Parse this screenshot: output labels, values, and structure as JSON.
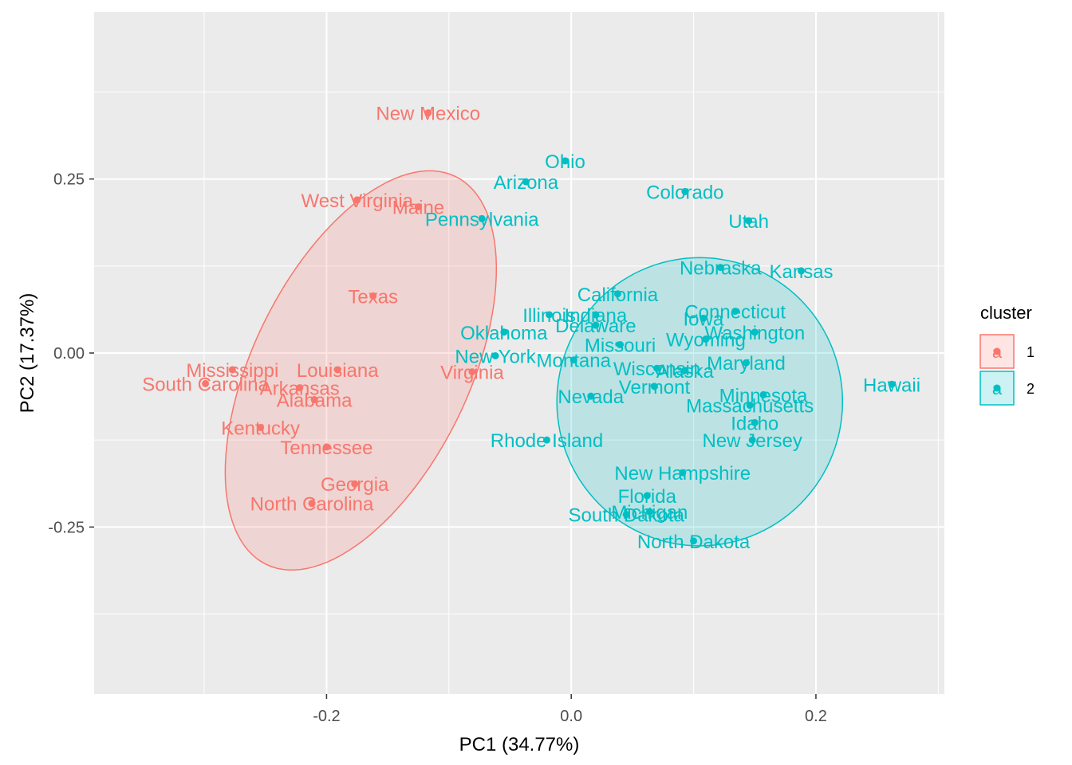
{
  "chart_data": {
    "type": "scatter",
    "xlabel": "PC1 (34.77%)",
    "ylabel": "PC2 (17.37%)",
    "xlim": [
      -0.39,
      0.305
    ],
    "ylim": [
      -0.49,
      0.49
    ],
    "x_ticks": [
      -0.2,
      0.0,
      0.2
    ],
    "x_tick_labels": [
      "-0.2",
      "0.0",
      "0.2"
    ],
    "y_ticks": [
      -0.25,
      0.0,
      0.25
    ],
    "y_tick_labels": [
      "-0.25",
      "0.00",
      "0.25"
    ],
    "grid": true,
    "legend": {
      "title": "cluster",
      "position": "right",
      "entries": [
        {
          "label": "1",
          "color": "#F8766D"
        },
        {
          "label": "2",
          "color": "#00BFC4"
        }
      ]
    },
    "series": [
      {
        "name": "1",
        "color": "#F8766D",
        "ellipse": {
          "cx": -0.172,
          "cy": -0.025,
          "rx": 0.31,
          "ry": 0.155,
          "angle_deg": 64
        },
        "points": [
          {
            "label": "New Mexico",
            "x": -0.117,
            "y": 0.345
          },
          {
            "label": "West Virginia",
            "x": -0.175,
            "y": 0.22
          },
          {
            "label": "Maine",
            "x": -0.125,
            "y": 0.21
          },
          {
            "label": "Texas",
            "x": -0.162,
            "y": 0.082
          },
          {
            "label": "Mississippi",
            "x": -0.277,
            "y": -0.024
          },
          {
            "label": "Louisiana",
            "x": -0.191,
            "y": -0.024
          },
          {
            "label": "South Carolina",
            "x": -0.299,
            "y": -0.044
          },
          {
            "label": "Arkansas",
            "x": -0.222,
            "y": -0.05
          },
          {
            "label": "Alabama",
            "x": -0.21,
            "y": -0.067
          },
          {
            "label": "Virginia",
            "x": -0.081,
            "y": -0.027
          },
          {
            "label": "Kentucky",
            "x": -0.254,
            "y": -0.107
          },
          {
            "label": "Tennessee",
            "x": -0.2,
            "y": -0.135
          },
          {
            "label": "Georgia",
            "x": -0.177,
            "y": -0.188
          },
          {
            "label": "North Carolina",
            "x": -0.212,
            "y": -0.216
          }
        ]
      },
      {
        "name": "2",
        "color": "#00BFC4",
        "ellipse": {
          "cx": 0.105,
          "cy": -0.07,
          "rx": 0.205,
          "ry": 0.207,
          "angle_deg": 0
        },
        "points": [
          {
            "label": "Ohio",
            "x": -0.005,
            "y": 0.276
          },
          {
            "label": "Arizona",
            "x": -0.037,
            "y": 0.246
          },
          {
            "label": "Colorado",
            "x": 0.093,
            "y": 0.232
          },
          {
            "label": "Utah",
            "x": 0.145,
            "y": 0.19
          },
          {
            "label": "Pennsylvania",
            "x": -0.073,
            "y": 0.193
          },
          {
            "label": "Nebraska",
            "x": 0.122,
            "y": 0.123
          },
          {
            "label": "Kansas",
            "x": 0.188,
            "y": 0.118
          },
          {
            "label": "California",
            "x": 0.038,
            "y": 0.085
          },
          {
            "label": "Connecticut",
            "x": 0.134,
            "y": 0.06
          },
          {
            "label": "Illinois",
            "x": -0.018,
            "y": 0.055
          },
          {
            "label": "Indiana",
            "x": 0.02,
            "y": 0.055
          },
          {
            "label": "Iowa",
            "x": 0.108,
            "y": 0.05
          },
          {
            "label": "Delaware",
            "x": 0.02,
            "y": 0.04
          },
          {
            "label": "Washington",
            "x": 0.15,
            "y": 0.03
          },
          {
            "label": "Oklahoma",
            "x": -0.055,
            "y": 0.03
          },
          {
            "label": "Wyoming",
            "x": 0.11,
            "y": 0.02
          },
          {
            "label": "Missouri",
            "x": 0.04,
            "y": 0.012
          },
          {
            "label": "New York",
            "x": -0.062,
            "y": -0.004
          },
          {
            "label": "Montana",
            "x": 0.002,
            "y": -0.01
          },
          {
            "label": "Maryland",
            "x": 0.143,
            "y": -0.014
          },
          {
            "label": "Wisconsin",
            "x": 0.07,
            "y": -0.022
          },
          {
            "label": "Alaska",
            "x": 0.093,
            "y": -0.025
          },
          {
            "label": "Hawaii",
            "x": 0.262,
            "y": -0.045
          },
          {
            "label": "Vermont",
            "x": 0.068,
            "y": -0.048
          },
          {
            "label": "Nevada",
            "x": 0.016,
            "y": -0.062
          },
          {
            "label": "Minnesota",
            "x": 0.157,
            "y": -0.06
          },
          {
            "label": "Massachusetts",
            "x": 0.146,
            "y": -0.075
          },
          {
            "label": "Idaho",
            "x": 0.15,
            "y": -0.1
          },
          {
            "label": "Rhode Island",
            "x": -0.02,
            "y": -0.125
          },
          {
            "label": "New Jersey",
            "x": 0.148,
            "y": -0.125
          },
          {
            "label": "New Hampshire",
            "x": 0.091,
            "y": -0.172
          },
          {
            "label": "Florida",
            "x": 0.062,
            "y": -0.205
          },
          {
            "label": "Michigan",
            "x": 0.064,
            "y": -0.228
          },
          {
            "label": "South Dakota",
            "x": 0.045,
            "y": -0.232
          },
          {
            "label": "North Dakota",
            "x": 0.1,
            "y": -0.27
          }
        ]
      }
    ]
  }
}
